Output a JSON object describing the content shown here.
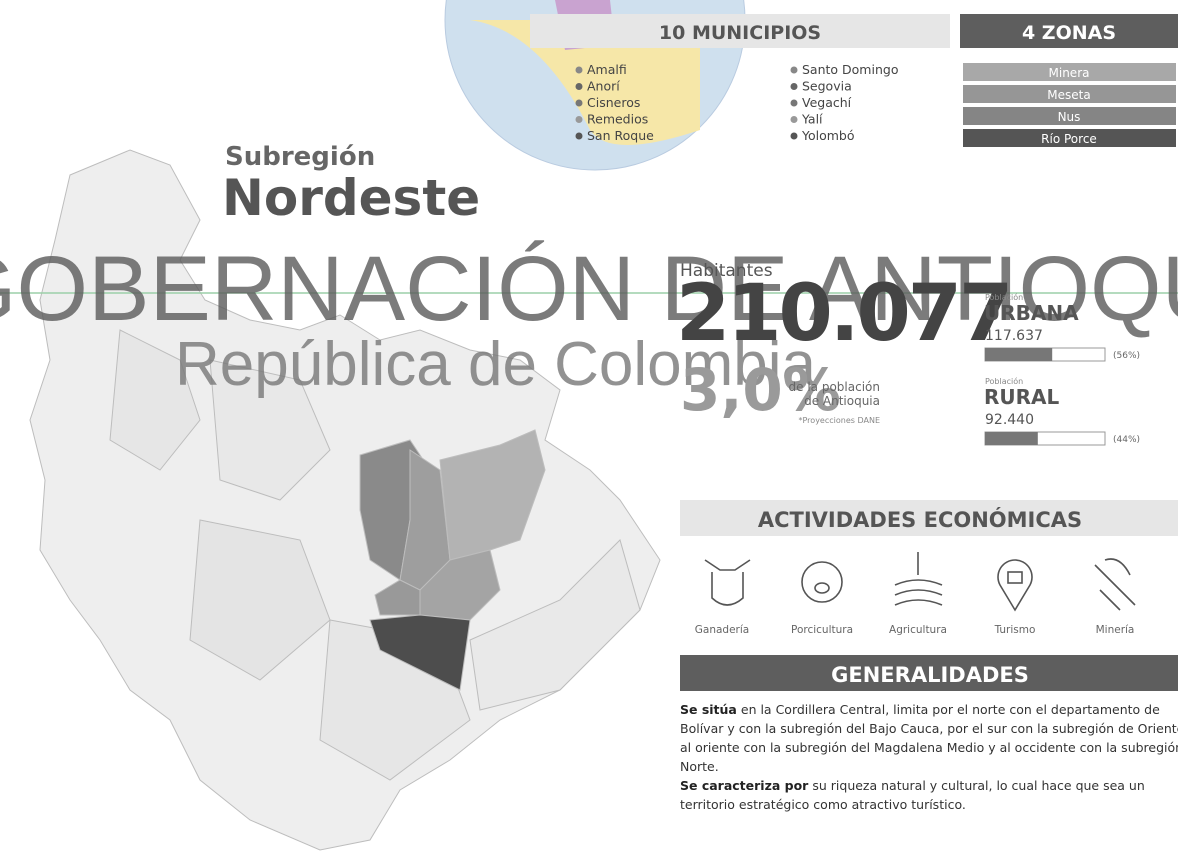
{
  "header": {
    "subtitle": "Subregión",
    "title": "Nordeste"
  },
  "municipios": {
    "title": "10 MUNICIPIOS",
    "items": [
      "Amalfi",
      "Anorí",
      "Cisneros",
      "Remedios",
      "San Roque",
      "Santo Domingo",
      "Segovia",
      "Vegachí",
      "Yalí",
      "Yolombó"
    ]
  },
  "zonas": {
    "title": "4 ZONAS",
    "items": [
      "Minera",
      "Meseta",
      "Nus",
      "Río Porce"
    ]
  },
  "poblacion": {
    "label": "Habitantes",
    "total": "210.077",
    "share": "3,0%",
    "share_text": [
      "de la población",
      "de Antioquia"
    ],
    "source": "*Proyecciones DANE",
    "urbana": {
      "caption": "Población",
      "name": "URBANA",
      "value": "117.637",
      "percent": 56,
      "percent_label": "(56%)"
    },
    "rural": {
      "caption": "Población",
      "name": "RURAL",
      "value": "92.440",
      "percent": 44,
      "percent_label": "(44%)"
    }
  },
  "actividades": {
    "title": "ACTIVIDADES ECONÓMICAS",
    "items": [
      "Ganadería",
      "Porcicultura",
      "Agricultura",
      "Turismo",
      "Minería"
    ]
  },
  "generalidades": {
    "title": "GENERALIDADES",
    "paragraphs": [
      {
        "lead": "Se sitúa",
        "text": "en la Cordillera Central, limita por el norte con el departamento de Bolívar y con la subregión del Bajo Cauca, por el sur con la subregión de Oriente, al oriente con la subregión del Magdalena Medio y al occidente con la subregión Norte."
      },
      {
        "lead": "Se caracteriza por",
        "text": "su riqueza natural y cultural, lo cual hace que sea un territorio estratégico como atractivo turístico."
      }
    ]
  },
  "watermark": {
    "line1": "GOBERNACIÓN DE ANTIOQUIA",
    "line2": "República de Colombia"
  }
}
